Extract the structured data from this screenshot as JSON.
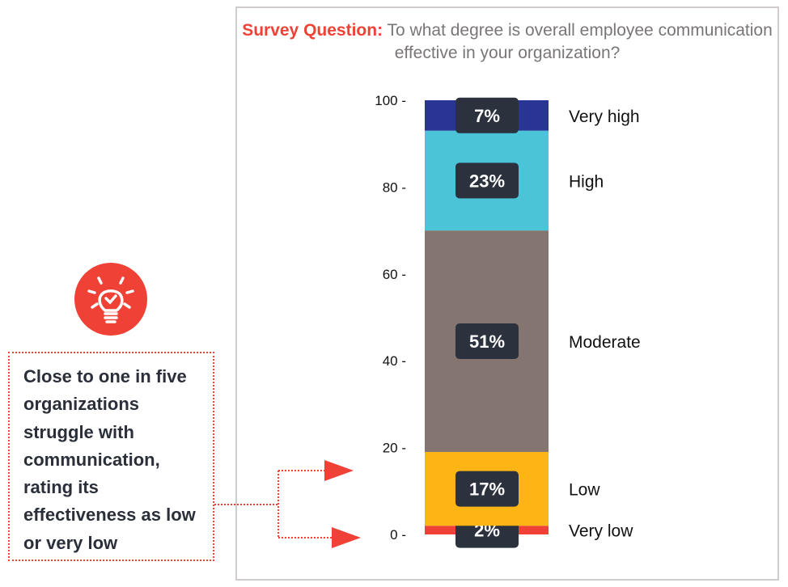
{
  "title": {
    "prefix": "Survey Question:",
    "text": "To what degree is overall employee communication effective in your organization?"
  },
  "callout": {
    "text": "Close to one in five organizations struggle with communication, rating its effectiveness as low or very low",
    "icon": "lightbulb-check-icon"
  },
  "chart_data": {
    "type": "bar",
    "stacked": true,
    "title": "Survey Question: To what degree is overall employee communication effective in your organization?",
    "ylim": [
      0,
      100
    ],
    "yticks": [
      0,
      20,
      40,
      60,
      80,
      100
    ],
    "series": [
      {
        "name": "Very low",
        "value": 2,
        "label": "2%",
        "color": "#ef4136"
      },
      {
        "name": "Low",
        "value": 17,
        "label": "17%",
        "color": "#fdb515"
      },
      {
        "name": "Moderate",
        "value": 51,
        "label": "51%",
        "color": "#857571"
      },
      {
        "name": "High",
        "value": 23,
        "label": "23%",
        "color": "#4bc4d8"
      },
      {
        "name": "Very high",
        "value": 7,
        "label": "7%",
        "color": "#283593"
      }
    ]
  }
}
